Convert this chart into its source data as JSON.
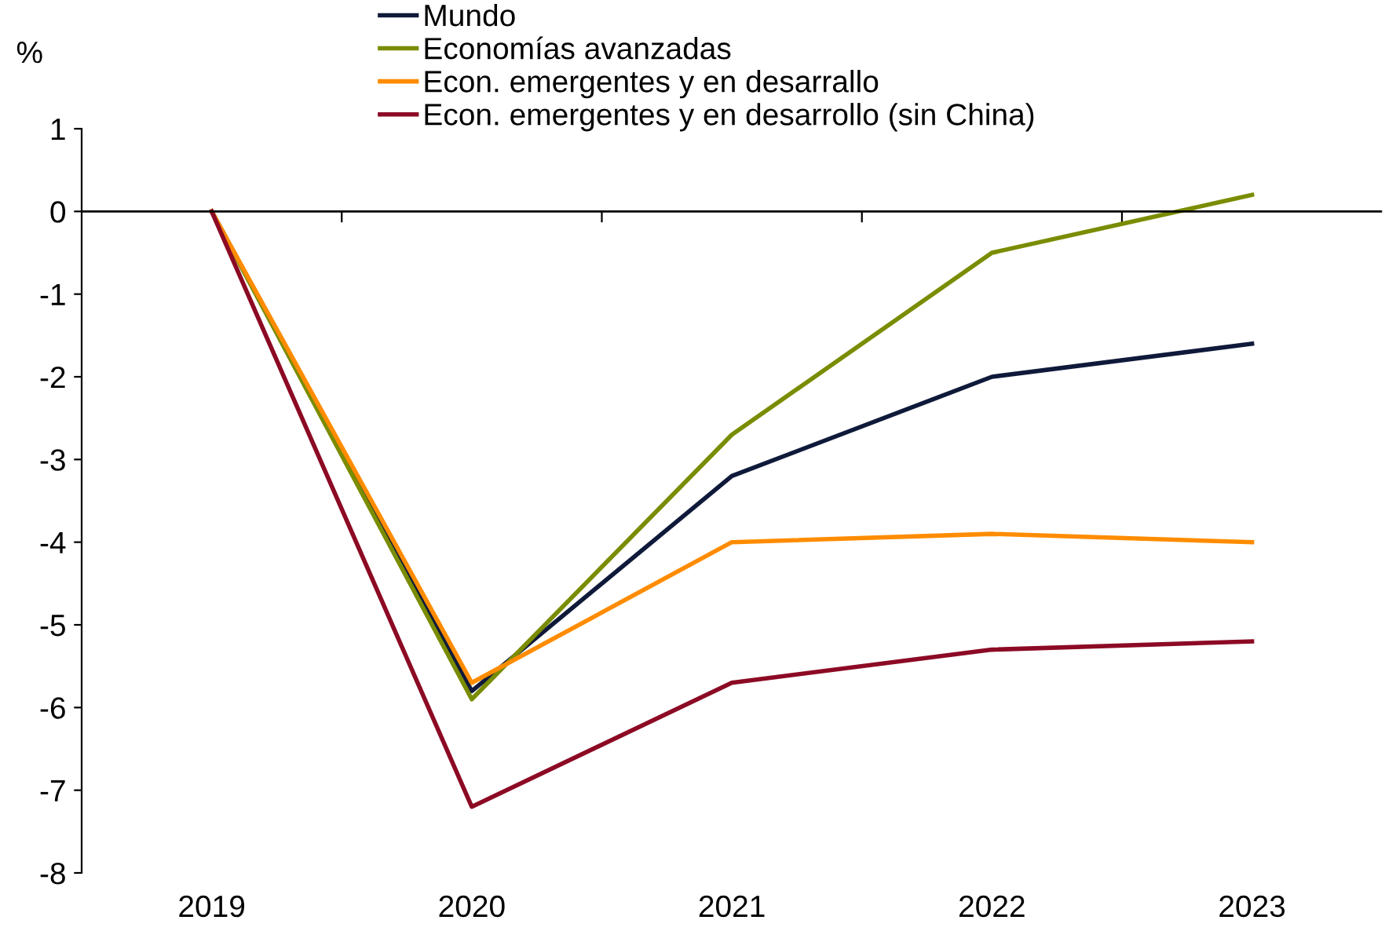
{
  "chart_data": {
    "type": "line",
    "ylabel": "%",
    "categories": [
      "2019",
      "2020",
      "2021",
      "2022",
      "2023"
    ],
    "series": [
      {
        "name": "Mundo",
        "color": "#0f1a3a",
        "values": [
          0,
          -5.8,
          -3.2,
          -2.0,
          -1.6
        ]
      },
      {
        "name": "Economías avanzadas",
        "color": "#7a8c00",
        "values": [
          0,
          -5.9,
          -2.7,
          -0.5,
          0.2
        ]
      },
      {
        "name": "Econ. emergentes y en desarrallo",
        "color": "#ff8c00",
        "values": [
          0,
          -5.7,
          -4.0,
          -3.9,
          -4.0
        ]
      },
      {
        "name": "Econ. emergentes y en desarrollo (sin China)",
        "color": "#8c0a24",
        "values": [
          0,
          -7.2,
          -5.7,
          -5.3,
          -5.2
        ]
      }
    ],
    "ylim": [
      -8,
      1
    ],
    "yticks": [
      -8,
      -7,
      -6,
      -5,
      -4,
      -3,
      -2,
      -1,
      0,
      1
    ],
    "ref_lines": [
      {
        "axis": "y",
        "value": 0,
        "color": "#000000"
      }
    ],
    "grid": false,
    "legend": "top",
    "marker": "none",
    "line_style": "solid"
  }
}
